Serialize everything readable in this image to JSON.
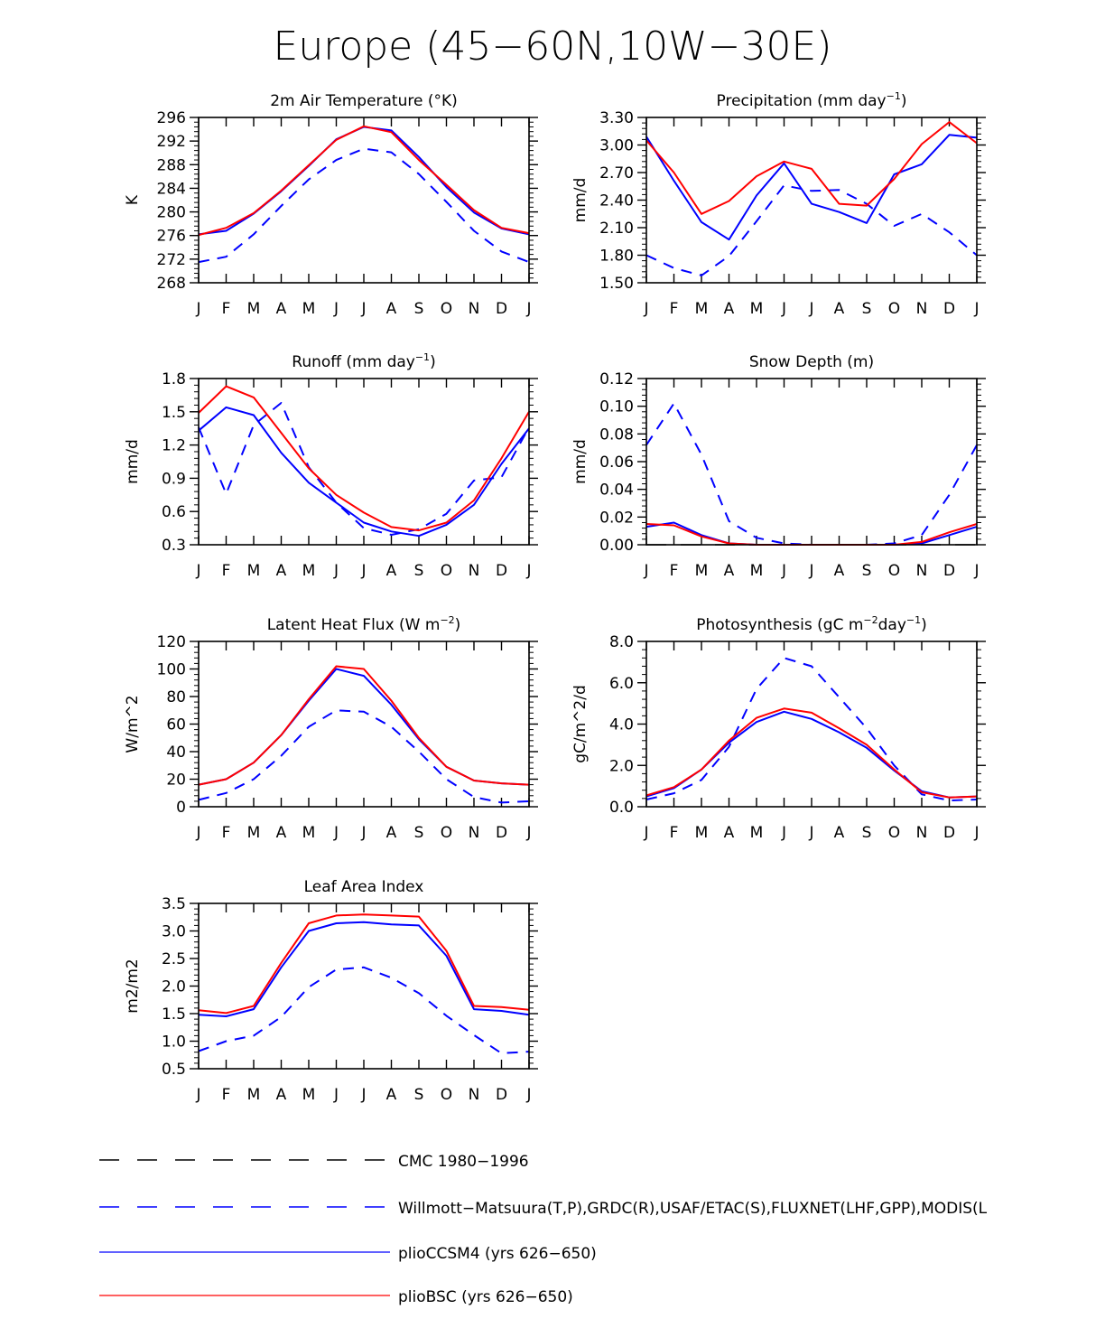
{
  "figure": {
    "title": "Europe (45−60N,10W−30E)",
    "months": [
      "J",
      "F",
      "M",
      "A",
      "M",
      "J",
      "J",
      "A",
      "S",
      "O",
      "N",
      "D",
      "J"
    ]
  },
  "colors": {
    "cmc": "#000000",
    "obs": "#0000ff",
    "plioCCSM4": "#0000ff",
    "plioBSC": "#ff0000"
  },
  "legend": [
    {
      "key": "cmc",
      "label": "CMC 1980−1996",
      "style": "dashed",
      "color": "#000000"
    },
    {
      "key": "obs",
      "label": "Willmott−Matsuura(T,P),GRDC(R),USAF/ETAC(S),FLUXNET(LHF,GPP),MODIS(L",
      "style": "dashed",
      "color": "#0000ff"
    },
    {
      "key": "plioCCSM4",
      "label": "plioCCSM4 (yrs 626−650)",
      "style": "solid",
      "color": "#0000ff"
    },
    {
      "key": "plioBSC",
      "label": "plioBSC (yrs 626−650)",
      "style": "solid",
      "color": "#ff0000"
    }
  ],
  "chart_data": [
    {
      "type": "line",
      "title": "2m Air Temperature (°K)",
      "ylabel": "K",
      "ylim": [
        268,
        296
      ],
      "yticks": [
        268,
        272,
        276,
        280,
        284,
        288,
        292,
        296
      ],
      "ytick_labels": [
        "268",
        "272",
        "276",
        "280",
        "284",
        "288",
        "292",
        "296"
      ],
      "x": [
        "J",
        "F",
        "M",
        "A",
        "M",
        "J",
        "J",
        "A",
        "S",
        "O",
        "N",
        "D",
        "J"
      ],
      "series": [
        {
          "name": "obs",
          "values": [
            271.5,
            272.4,
            276.2,
            281.0,
            285.5,
            288.8,
            290.7,
            290.1,
            286.4,
            281.7,
            276.8,
            273.3,
            271.5
          ]
        },
        {
          "name": "plioCCSM4",
          "values": [
            276.2,
            276.8,
            279.7,
            283.5,
            287.8,
            292.3,
            294.4,
            293.8,
            289.3,
            284.2,
            279.9,
            277.2,
            276.2
          ]
        },
        {
          "name": "plioBSC",
          "values": [
            276.1,
            277.3,
            279.8,
            283.6,
            287.9,
            292.2,
            294.5,
            293.5,
            288.8,
            284.6,
            280.3,
            277.3,
            276.4
          ]
        }
      ]
    },
    {
      "type": "line",
      "title": "Precipitation (mm day−1)",
      "ylabel": "mm/d",
      "ylim": [
        1.5,
        3.3
      ],
      "yticks": [
        1.5,
        1.8,
        2.1,
        2.4,
        2.7,
        3.0,
        3.3
      ],
      "ytick_labels": [
        "1.50",
        "1.80",
        "2.10",
        "2.40",
        "2.70",
        "3.00",
        "3.30"
      ],
      "x": [
        "J",
        "F",
        "M",
        "A",
        "M",
        "J",
        "J",
        "A",
        "S",
        "O",
        "N",
        "D",
        "J"
      ],
      "series": [
        {
          "name": "obs",
          "values": [
            1.8,
            1.66,
            1.58,
            1.79,
            2.17,
            2.56,
            2.5,
            2.51,
            2.36,
            2.12,
            2.25,
            2.05,
            1.8
          ]
        },
        {
          "name": "plioCCSM4",
          "values": [
            3.09,
            2.61,
            2.16,
            1.97,
            2.45,
            2.8,
            2.36,
            2.27,
            2.15,
            2.68,
            2.79,
            3.11,
            3.08
          ]
        },
        {
          "name": "plioBSC",
          "values": [
            3.05,
            2.7,
            2.25,
            2.39,
            2.66,
            2.82,
            2.74,
            2.36,
            2.34,
            2.63,
            3.01,
            3.25,
            3.02
          ]
        }
      ]
    },
    {
      "type": "line",
      "title": "Runoff (mm day−1)",
      "ylabel": "mm/d",
      "ylim": [
        0.3,
        1.8
      ],
      "yticks": [
        0.3,
        0.6,
        0.9,
        1.2,
        1.5,
        1.8
      ],
      "ytick_labels": [
        "0.3",
        "0.6",
        "0.9",
        "1.2",
        "1.5",
        "1.8"
      ],
      "x": [
        "J",
        "F",
        "M",
        "A",
        "M",
        "J",
        "J",
        "A",
        "S",
        "O",
        "N",
        "D",
        "J"
      ],
      "series": [
        {
          "name": "obs",
          "values": [
            1.36,
            0.76,
            1.38,
            1.58,
            1.0,
            0.68,
            0.45,
            0.39,
            0.44,
            0.58,
            0.88,
            0.91,
            1.36
          ]
        },
        {
          "name": "plioCCSM4",
          "values": [
            1.33,
            1.54,
            1.47,
            1.13,
            0.86,
            0.68,
            0.5,
            0.42,
            0.38,
            0.48,
            0.66,
            1.03,
            1.35
          ]
        },
        {
          "name": "plioBSC",
          "values": [
            1.49,
            1.73,
            1.63,
            1.31,
            0.99,
            0.75,
            0.59,
            0.46,
            0.43,
            0.5,
            0.7,
            1.08,
            1.5
          ]
        }
      ]
    },
    {
      "type": "line",
      "title": "Snow Depth (m)",
      "ylabel": "mm/d",
      "ylim": [
        0.0,
        0.12
      ],
      "yticks": [
        0.0,
        0.02,
        0.04,
        0.06,
        0.08,
        0.1,
        0.12
      ],
      "ytick_labels": [
        "0.00",
        "0.02",
        "0.04",
        "0.06",
        "0.08",
        "0.10",
        "0.12"
      ],
      "x": [
        "J",
        "F",
        "M",
        "A",
        "M",
        "J",
        "J",
        "A",
        "S",
        "O",
        "N",
        "D",
        "J"
      ],
      "series": [
        {
          "name": "cmc",
          "values": [
            0,
            0,
            0,
            0,
            0,
            0,
            0,
            0,
            0,
            0,
            0,
            0,
            0
          ]
        },
        {
          "name": "obs",
          "values": [
            0.072,
            0.102,
            0.065,
            0.017,
            0.005,
            0.001,
            0.0,
            0.0,
            0.0,
            0.001,
            0.007,
            0.036,
            0.072
          ]
        },
        {
          "name": "plioCCSM4",
          "values": [
            0.013,
            0.016,
            0.007,
            0.001,
            0.0,
            0.0,
            0.0,
            0.0,
            0.0,
            0.0,
            0.001,
            0.007,
            0.013
          ]
        },
        {
          "name": "plioBSC",
          "values": [
            0.015,
            0.014,
            0.006,
            0.001,
            0.0,
            0.0,
            0.0,
            0.0,
            0.0,
            0.0,
            0.002,
            0.009,
            0.015
          ]
        }
      ]
    },
    {
      "type": "line",
      "title": "Latent Heat Flux (W m−2)",
      "ylabel": "W/m^2",
      "ylim": [
        0,
        120
      ],
      "yticks": [
        0,
        20,
        40,
        60,
        80,
        100,
        120
      ],
      "ytick_labels": [
        "0",
        "20",
        "40",
        "60",
        "80",
        "100",
        "120"
      ],
      "x": [
        "J",
        "F",
        "M",
        "A",
        "M",
        "J",
        "J",
        "A",
        "S",
        "O",
        "N",
        "D",
        "J"
      ],
      "series": [
        {
          "name": "obs",
          "values": [
            5,
            10,
            20,
            37,
            58,
            70,
            69,
            58,
            40,
            20,
            7,
            3,
            4
          ]
        },
        {
          "name": "plioCCSM4",
          "values": [
            16,
            20,
            32,
            52,
            77,
            100,
            95,
            74,
            49,
            29,
            19,
            17,
            16
          ]
        },
        {
          "name": "plioBSC",
          "values": [
            16,
            20,
            32,
            52,
            78,
            102,
            100,
            77,
            50,
            29,
            19,
            17,
            16
          ]
        }
      ]
    },
    {
      "type": "line",
      "title": "Photosynthesis (gC m−2day−1)",
      "ylabel": "gC/m^2/d",
      "ylim": [
        0.0,
        8.0
      ],
      "yticks": [
        0.0,
        2.0,
        4.0,
        6.0,
        8.0
      ],
      "ytick_labels": [
        "0.0",
        "2.0",
        "4.0",
        "6.0",
        "8.0"
      ],
      "x": [
        "J",
        "F",
        "M",
        "A",
        "M",
        "J",
        "J",
        "A",
        "S",
        "O",
        "N",
        "D",
        "J"
      ],
      "series": [
        {
          "name": "obs",
          "values": [
            0.35,
            0.65,
            1.3,
            2.9,
            5.7,
            7.2,
            6.8,
            5.3,
            3.8,
            2.0,
            0.6,
            0.3,
            0.35
          ]
        },
        {
          "name": "plioCCSM4",
          "values": [
            0.5,
            0.9,
            1.8,
            3.1,
            4.1,
            4.6,
            4.25,
            3.6,
            2.85,
            1.75,
            0.75,
            0.45,
            0.5
          ]
        },
        {
          "name": "plioBSC",
          "values": [
            0.55,
            0.95,
            1.8,
            3.2,
            4.3,
            4.75,
            4.55,
            3.8,
            3.0,
            1.8,
            0.7,
            0.45,
            0.5
          ]
        }
      ]
    },
    {
      "type": "line",
      "title": "Leaf Area Index",
      "ylabel": "m2/m2",
      "ylim": [
        0.5,
        3.5
      ],
      "yticks": [
        0.5,
        1.0,
        1.5,
        2.0,
        2.5,
        3.0,
        3.5
      ],
      "ytick_labels": [
        "0.5",
        "1.0",
        "1.5",
        "2.0",
        "2.5",
        "3.0",
        "3.5"
      ],
      "x": [
        "J",
        "F",
        "M",
        "A",
        "M",
        "J",
        "J",
        "A",
        "S",
        "O",
        "N",
        "D",
        "J"
      ],
      "series": [
        {
          "name": "obs",
          "values": [
            0.82,
            1.0,
            1.1,
            1.44,
            1.98,
            2.3,
            2.34,
            2.15,
            1.87,
            1.46,
            1.11,
            0.78,
            0.81
          ]
        },
        {
          "name": "plioCCSM4",
          "values": [
            1.48,
            1.45,
            1.58,
            2.34,
            3.0,
            3.14,
            3.16,
            3.12,
            3.1,
            2.55,
            1.58,
            1.55,
            1.48
          ]
        },
        {
          "name": "plioBSC",
          "values": [
            1.56,
            1.51,
            1.64,
            2.42,
            3.14,
            3.28,
            3.3,
            3.28,
            3.26,
            2.64,
            1.64,
            1.62,
            1.57
          ]
        }
      ]
    }
  ]
}
